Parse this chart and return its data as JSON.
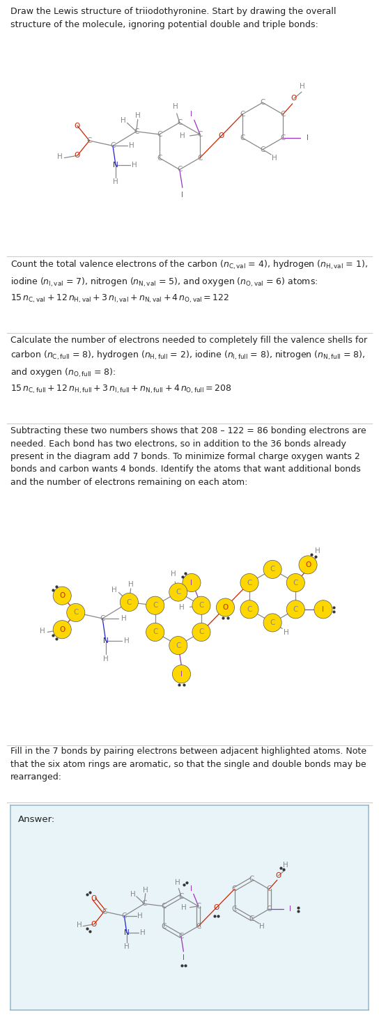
{
  "bg_color": "#ffffff",
  "C_color": "#888888",
  "H_color": "#888888",
  "O_color": "#cc2200",
  "N_color": "#2222cc",
  "I_color": "#9933bb",
  "bond_color": "#888888",
  "highlight_color": "#FFD700",
  "highlight_edge": "#555555",
  "divider_color": "#cccccc",
  "answer_bg": "#e8f4f8",
  "answer_border": "#99bbcc",
  "font_size_atom": 7.5,
  "font_size_text": 9.0,
  "title1": "Draw the Lewis structure of triiodothyronine. Start by drawing the overall\nstructure of the molecule, ignoring potential double and triple bonds:",
  "section2a": "Count the total valence electrons of the carbon (",
  "section4_text": "Subtracting these two numbers shows that 208 – 122 = 86 bonding electrons are\nneeded. Each bond has two electrons, so in addition to the 36 bonds already\npresent in the diagram add 7 bonds. To minimize formal charge oxygen wants 2\nbonds and carbon wants 4 bonds. Identify the atoms that want additional bonds\nand the number of electrons remaining on each atom:",
  "section5_text": "Fill in the 7 bonds by pairing electrons between adjacent highlighted atoms. Note\nthat the six atom rings are aromatic, so that the single and double bonds may be\nrearranged:",
  "answer_label": "Answer:"
}
